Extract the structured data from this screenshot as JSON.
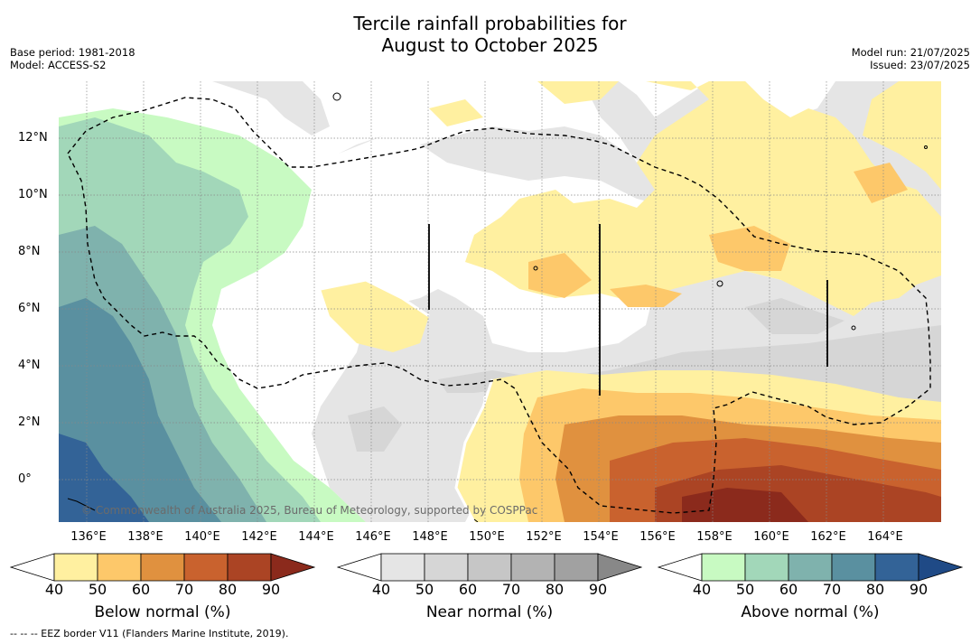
{
  "title_line1": "Tercile rainfall probabilities for",
  "title_line2": "August to October 2025",
  "meta_left": [
    "Base period: 1981-2018",
    "Model: ACCESS-S2"
  ],
  "meta_right": [
    "Model run: 21/07/2025",
    "Issued: 23/07/2025"
  ],
  "credit": "© Commonwealth of Australia 2025, Bureau of Meteorology, supported by COSPPac",
  "lon_ticks": [
    "136°E",
    "138°E",
    "140°E",
    "142°E",
    "144°E",
    "146°E",
    "148°E",
    "150°E",
    "152°E",
    "154°E",
    "156°E",
    "158°E",
    "160°E",
    "162°E",
    "164°E"
  ],
  "lat_ticks": [
    "12°N",
    "10°N",
    "8°N",
    "6°N",
    "4°N",
    "2°N",
    "0°"
  ],
  "colorbars": [
    {
      "label": "Below normal (%)",
      "ticks": [
        "40",
        "50",
        "60",
        "70",
        "80",
        "90"
      ],
      "colors": [
        "#ffffff",
        "#fff0a0",
        "#fdc86a",
        "#e0913f",
        "#c9622e",
        "#ab4424",
        "#8b2a1c"
      ]
    },
    {
      "label": "Near normal (%)",
      "ticks": [
        "40",
        "50",
        "60",
        "70",
        "80",
        "90"
      ],
      "colors": [
        "#ffffff",
        "#e5e5e5",
        "#d6d6d6",
        "#c6c6c6",
        "#b3b3b3",
        "#a1a1a1",
        "#888888"
      ]
    },
    {
      "label": "Above normal (%)",
      "ticks": [
        "40",
        "50",
        "60",
        "70",
        "80",
        "90"
      ],
      "colors": [
        "#ffffff",
        "#c8fac2",
        "#a2d7b9",
        "#7fb2ad",
        "#5a90a0",
        "#336397",
        "#1f4a86"
      ]
    }
  ],
  "footnote": "--  --  -- EEZ border V11 (Flanders Marine Institute, 2019)."
}
